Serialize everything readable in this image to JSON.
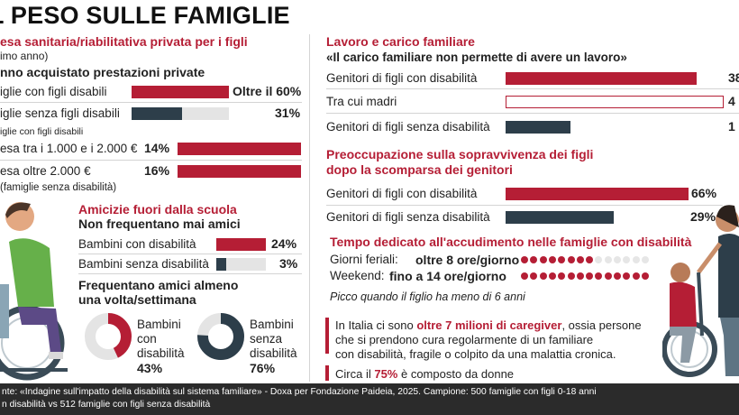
{
  "title": "L PESO SULLE FAMIGLIE",
  "left": {
    "section_title": "esa sanitaria/riabilitativa privata per i figli",
    "section_sub": "imo anno)",
    "sub_heading": "nno acquistato prestazioni private",
    "rows": [
      {
        "label": "iglie con figli disabili",
        "value_label": "Oltre il 60%"
      },
      {
        "label": "iglie senza figli disabili",
        "value_label": "31%"
      }
    ],
    "note1": "iglie con figli disabili",
    "spend_rows": [
      {
        "label": "esa tra i 1.000 e i 2.000 €",
        "value_label": "14%"
      },
      {
        "label": "esa oltre 2.000 €",
        "value_label": "16%"
      }
    ],
    "note2": "(famiglie senza disabilità)"
  },
  "friends": {
    "title": "Amicizie fuori dalla scuola",
    "subtitle": "Non frequentano mai amici",
    "rows": [
      {
        "label": "Bambini con disabilità",
        "value_label": "24%"
      },
      {
        "label": "Bambini senza disabilità",
        "value_label": "3%"
      }
    ],
    "weekly_heading_1": "Frequentano amici almeno",
    "weekly_heading_2": "una volta/settimana",
    "donut1": {
      "line1": "Bambini",
      "line2": "con",
      "line3": "disabilità",
      "value_label": "43%"
    },
    "donut2": {
      "line1": "Bambini",
      "line2": "senza",
      "line3": "disabilità",
      "value_label": "76%"
    }
  },
  "work": {
    "title": "Lavoro e carico familiare",
    "quote": "«Il carico familiare non permette di avere un lavoro»",
    "rows": [
      {
        "label": "Genitori di figli con disabilità",
        "value_label": "38"
      },
      {
        "label": "Tra cui madri",
        "value_label": "4"
      },
      {
        "label": "Genitori di figli senza disabilità",
        "value_label": "1"
      }
    ]
  },
  "worry": {
    "title_1": "Preoccupazione sulla sopravvivenza dei figli",
    "title_2": "dopo la scomparsa dei genitori",
    "rows": [
      {
        "label": "Genitori di figli con disabilità",
        "value_label": "66%"
      },
      {
        "label": "Genitori di figli senza disabilità",
        "value_label": "29%"
      }
    ]
  },
  "care": {
    "title": "Tempo dedicato all'accudimento nelle famiglie con disabilità",
    "weekday_label": "Giorni feriali:",
    "weekday_value": "oltre 8 ore/giorno",
    "weekend_label": "Weekend:",
    "weekend_value": "fino a 14 ore/giorno",
    "peak_note": "Picco quando il figlio ha meno di 6 anni"
  },
  "caregivers": {
    "line1_a": "In Italia ci sono ",
    "line1_b": "oltre 7 milioni di caregiver",
    "line1_c": ", ossia persone",
    "line2": "che  si prendono cura regolarmente di un familiare",
    "line3": "con disabilità, fragile o colpito da una malattia cronica.",
    "line4_a": "Circa il ",
    "line4_b": "75%",
    "line4_c": " è composto da donne"
  },
  "footer": {
    "line1": "nte: «Indagine sull'impatto della disabilità sul sistema familiare» - Doxa per Fondazione Paideia, 2025. Campione: 500 famiglie con figli 0-18 anni",
    "line2": "n disabilità vs 512 famiglie con figli senza disabilità"
  },
  "colors": {
    "accent": "#b51e35",
    "dark": "#2d3e4a",
    "track": "#e4e4e4",
    "footer_bg": "#2b2b2b"
  },
  "chart_data": [
    {
      "type": "bar",
      "title": "esa sanitaria/riabilitativa privata per i figli",
      "categories": [
        "iglie con figli disabili",
        "iglie senza figli disabili"
      ],
      "values": [
        60,
        31
      ]
    },
    {
      "type": "bar",
      "categories": [
        "esa tra i 1.000 e i 2.000 €",
        "esa oltre 2.000 €"
      ],
      "values": [
        14,
        16
      ]
    },
    {
      "type": "bar",
      "title": "Non frequentano mai amici",
      "categories": [
        "Bambini con disabilità",
        "Bambini senza disabilità"
      ],
      "values": [
        24,
        3
      ]
    },
    {
      "type": "pie",
      "title": "Frequentano amici almeno una volta/settimana",
      "categories": [
        "Bambini con disabilità",
        "Bambini senza disabilità"
      ],
      "values": [
        43,
        76
      ]
    },
    {
      "type": "bar",
      "title": "Lavoro e carico familiare",
      "categories": [
        "Genitori di figli con disabilità",
        "Tra cui madri",
        "Genitori di figli senza disabilità"
      ],
      "values": [
        38,
        4,
        1
      ]
    },
    {
      "type": "bar",
      "title": "Preoccupazione sulla sopravvivenza dei figli dopo la scomparsa dei genitori",
      "categories": [
        "Genitori di figli con disabilità",
        "Genitori di figli senza disabilità"
      ],
      "values": [
        66,
        29
      ]
    },
    {
      "type": "bar",
      "title": "Tempo dedicato all'accudimento nelle famiglie con disabilità",
      "categories": [
        "Giorni feriali",
        "Weekend"
      ],
      "values": [
        8,
        14
      ]
    }
  ]
}
